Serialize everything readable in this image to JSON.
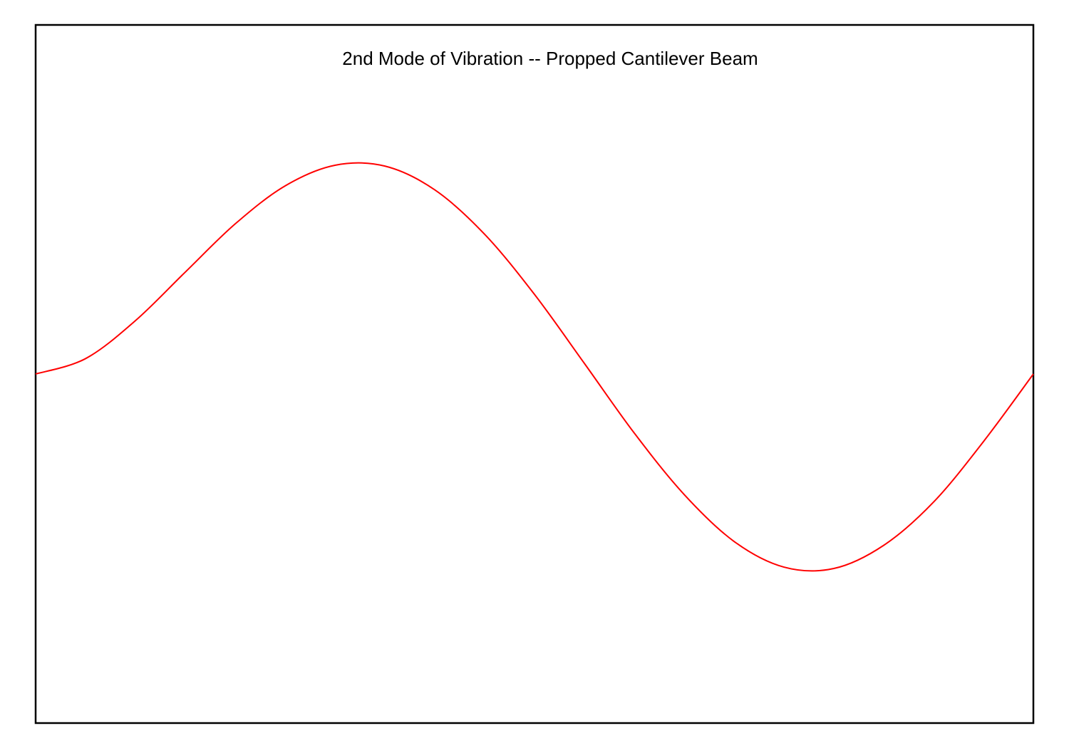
{
  "chart_data": {
    "type": "line",
    "title": "2nd Mode of Vibration -- Propped Cantilever Beam",
    "x": [
      0,
      0.05,
      0.1,
      0.15,
      0.2,
      0.25,
      0.3,
      0.35,
      0.4,
      0.45,
      0.5,
      0.55,
      0.6,
      0.65,
      0.7,
      0.75,
      0.8,
      0.85,
      0.9,
      0.95,
      1
    ],
    "values": [
      0,
      0.11,
      0.382,
      0.73,
      1.075,
      1.347,
      1.495,
      1.489,
      1.319,
      1.001,
      0.57,
      0.076,
      -0.423,
      -0.863,
      -1.199,
      -1.383,
      -1.393,
      -1.227,
      -0.917,
      -0.484,
      0
    ],
    "color": "#ff0000",
    "xlim": [
      0,
      1
    ],
    "ylim": [
      -2.5,
      2.5
    ]
  }
}
